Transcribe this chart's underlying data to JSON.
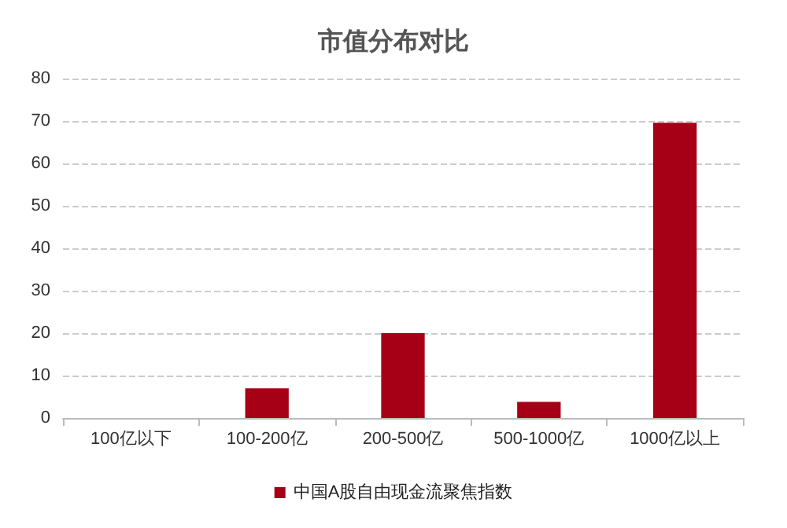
{
  "chart_data": {
    "type": "bar",
    "title": "市值分布对比",
    "categories": [
      "100亿以下",
      "100-200亿",
      "200-500亿",
      "500-1000亿",
      "1000亿以上"
    ],
    "series": [
      {
        "name": "中国A股自由现金流聚焦指数",
        "color": "#a50016",
        "values": [
          0,
          7,
          20,
          3.8,
          69.6
        ]
      }
    ],
    "ylim": [
      0,
      80
    ],
    "yticks": [
      0,
      10,
      20,
      30,
      40,
      50,
      60,
      70,
      80
    ],
    "grid": "y",
    "legend": "bottom"
  }
}
